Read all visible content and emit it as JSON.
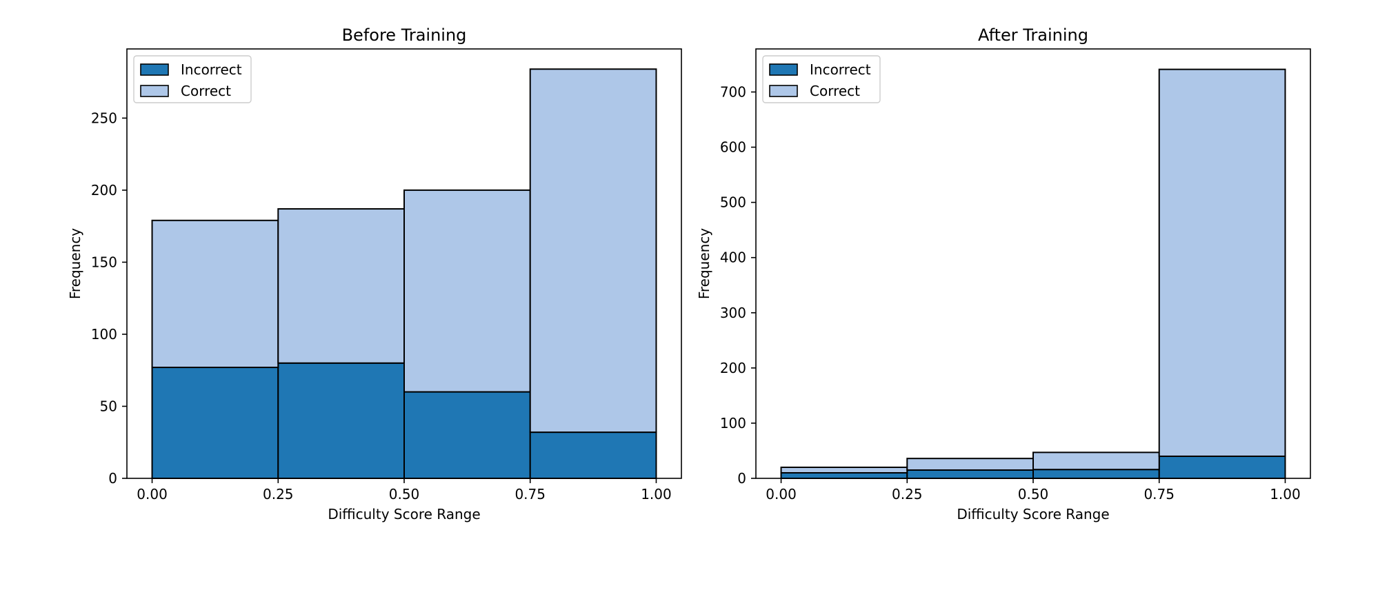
{
  "colors": {
    "incorrect": "#1f77b4",
    "correct": "#aec7e8",
    "edge": "#000000",
    "legend_border": "#cccccc"
  },
  "chart_data": [
    {
      "type": "bar",
      "stacked": true,
      "title": "Before Training",
      "xlabel": "Difficulty Score Range",
      "ylabel": "Frequency",
      "bins": [
        [
          0.0,
          0.25
        ],
        [
          0.25,
          0.5
        ],
        [
          0.5,
          0.75
        ],
        [
          0.75,
          1.0
        ]
      ],
      "xlim": [
        -0.05,
        1.05
      ],
      "ylim": [
        0,
        298
      ],
      "xticks": [
        0.0,
        0.25,
        0.5,
        0.75,
        1.0
      ],
      "xtick_labels": [
        "0.00",
        "0.25",
        "0.50",
        "0.75",
        "1.00"
      ],
      "yticks": [
        0,
        50,
        100,
        150,
        200,
        250
      ],
      "ytick_labels": [
        "0",
        "50",
        "100",
        "150",
        "200",
        "250"
      ],
      "series": [
        {
          "name": "Incorrect",
          "key": "incorrect",
          "values": [
            77,
            80,
            60,
            32
          ]
        },
        {
          "name": "Correct",
          "key": "correct",
          "values": [
            102,
            107,
            140,
            252
          ]
        }
      ],
      "legend": "upper-left",
      "grid": false
    },
    {
      "type": "bar",
      "stacked": true,
      "title": "After Training",
      "xlabel": "Difficulty Score Range",
      "ylabel": "Frequency",
      "bins": [
        [
          0.0,
          0.25
        ],
        [
          0.25,
          0.5
        ],
        [
          0.5,
          0.75
        ],
        [
          0.75,
          1.0
        ]
      ],
      "xlim": [
        -0.05,
        1.05
      ],
      "ylim": [
        0,
        778
      ],
      "xticks": [
        0.0,
        0.25,
        0.5,
        0.75,
        1.0
      ],
      "xtick_labels": [
        "0.00",
        "0.25",
        "0.50",
        "0.75",
        "1.00"
      ],
      "yticks": [
        0,
        100,
        200,
        300,
        400,
        500,
        600,
        700
      ],
      "ytick_labels": [
        "0",
        "100",
        "200",
        "300",
        "400",
        "500",
        "600",
        "700"
      ],
      "series": [
        {
          "name": "Incorrect",
          "key": "incorrect",
          "values": [
            10,
            15,
            16,
            40
          ]
        },
        {
          "name": "Correct",
          "key": "correct",
          "values": [
            10,
            21,
            31,
            701
          ]
        }
      ],
      "legend": "upper-left",
      "grid": false
    }
  ]
}
